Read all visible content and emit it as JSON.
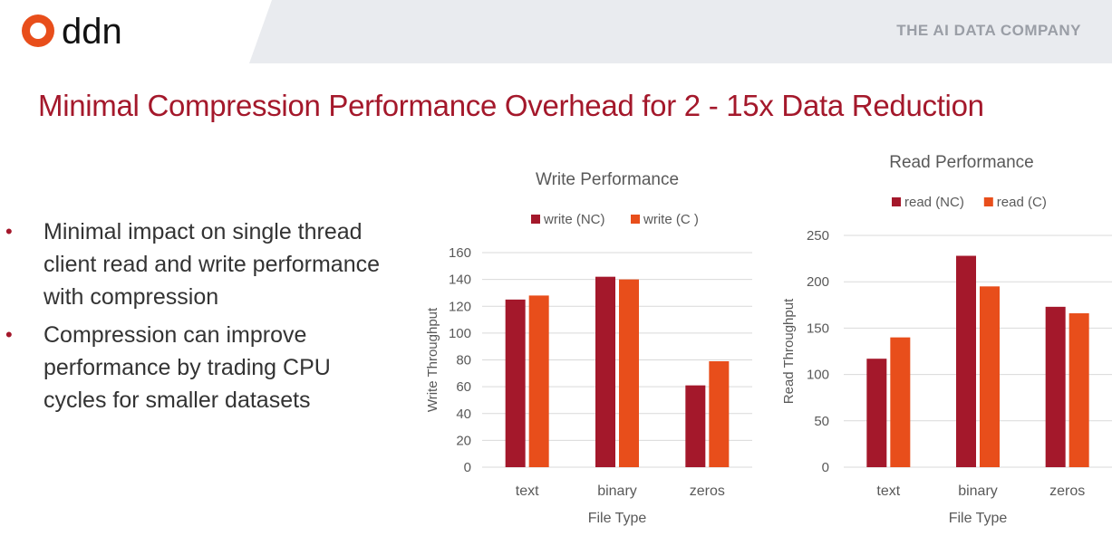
{
  "header": {
    "logo_text": "ddn",
    "tagline": "THE AI DATA COMPANY"
  },
  "title": "Minimal Compression Performance Overhead for 2 - 15x Data Reduction",
  "bullets": [
    "Minimal impact on single thread client read and write performance with compression",
    "Compression can improve performance by trading CPU cycles for smaller datasets"
  ],
  "colors": {
    "brand_red": "#a4182b",
    "nc": "#a4182b",
    "c": "#e84e1b"
  },
  "chart_data": [
    {
      "type": "bar",
      "title": "Write Performance",
      "categories": [
        "text",
        "binary",
        "zeros"
      ],
      "series": [
        {
          "name": "write (NC)",
          "values": [
            125,
            142,
            61
          ],
          "color": "#a4182b"
        },
        {
          "name": "write (C )",
          "values": [
            128,
            140,
            79
          ],
          "color": "#e84e1b"
        }
      ],
      "xlabel": "File Type",
      "ylabel": "Write Throughput",
      "ylim": [
        0,
        160
      ],
      "yticks": [
        0,
        20,
        40,
        60,
        80,
        100,
        120,
        140,
        160
      ],
      "legend": "top",
      "grid": true
    },
    {
      "type": "bar",
      "title": "Read Performance",
      "categories": [
        "text",
        "binary",
        "zeros"
      ],
      "series": [
        {
          "name": "read (NC)",
          "values": [
            117,
            228,
            173
          ],
          "color": "#a4182b"
        },
        {
          "name": "read (C)",
          "values": [
            140,
            195,
            166
          ],
          "color": "#e84e1b"
        }
      ],
      "xlabel": "File Type",
      "ylabel": "Read Throughput",
      "ylim": [
        0,
        250
      ],
      "yticks": [
        0,
        50,
        100,
        150,
        200,
        250
      ],
      "legend": "top",
      "grid": true
    }
  ]
}
